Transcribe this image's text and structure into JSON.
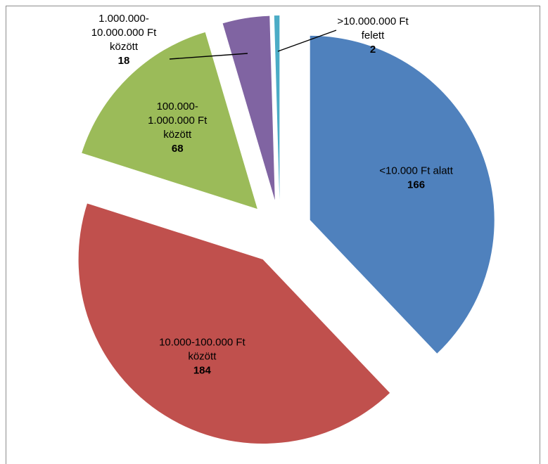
{
  "chart_data": {
    "type": "pie",
    "exploded": true,
    "legend": "none",
    "slices": [
      {
        "label_lines": [
          "<10.000 Ft alatt"
        ],
        "value": 166,
        "color": "#4f81bd"
      },
      {
        "label_lines": [
          "10.000-100.000 Ft",
          "között"
        ],
        "value": 184,
        "color": "#c0504d"
      },
      {
        "label_lines": [
          "100.000-",
          "1.000.000 Ft",
          "között"
        ],
        "value": 68,
        "color": "#9bbb59"
      },
      {
        "label_lines": [
          "1.000.000-",
          "10.000.000 Ft",
          "között"
        ],
        "value": 18,
        "color": "#8064a2"
      },
      {
        "label_lines": [
          ">10.000.000 Ft",
          "felett"
        ],
        "value": 2,
        "color": "#4bacc6"
      }
    ]
  }
}
